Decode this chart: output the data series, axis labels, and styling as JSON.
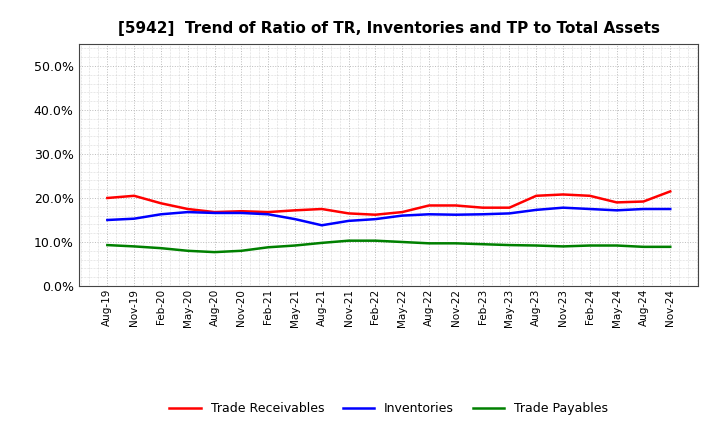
{
  "title": "[5942]  Trend of Ratio of TR, Inventories and TP to Total Assets",
  "x_labels": [
    "Aug-19",
    "Nov-19",
    "Feb-20",
    "May-20",
    "Aug-20",
    "Nov-20",
    "Feb-21",
    "May-21",
    "Aug-21",
    "Nov-21",
    "Feb-22",
    "May-22",
    "Aug-22",
    "Nov-22",
    "Feb-23",
    "May-23",
    "Aug-23",
    "Nov-23",
    "Feb-24",
    "May-24",
    "Aug-24",
    "Nov-24"
  ],
  "trade_receivables": [
    0.2,
    0.205,
    0.188,
    0.175,
    0.168,
    0.17,
    0.168,
    0.172,
    0.175,
    0.165,
    0.162,
    0.168,
    0.183,
    0.183,
    0.178,
    0.178,
    0.205,
    0.208,
    0.205,
    0.19,
    0.192,
    0.215
  ],
  "inventories": [
    0.15,
    0.153,
    0.163,
    0.168,
    0.166,
    0.166,
    0.163,
    0.152,
    0.138,
    0.148,
    0.152,
    0.16,
    0.163,
    0.162,
    0.163,
    0.165,
    0.173,
    0.178,
    0.175,
    0.172,
    0.175,
    0.175
  ],
  "trade_payables": [
    0.093,
    0.09,
    0.086,
    0.08,
    0.077,
    0.08,
    0.088,
    0.092,
    0.098,
    0.103,
    0.103,
    0.1,
    0.097,
    0.097,
    0.095,
    0.093,
    0.092,
    0.09,
    0.092,
    0.092,
    0.089,
    0.089
  ],
  "tr_color": "#ff0000",
  "inv_color": "#0000ff",
  "tp_color": "#008000",
  "ylim": [
    0.0,
    0.55
  ],
  "yticks": [
    0.0,
    0.1,
    0.2,
    0.3,
    0.4,
    0.5
  ],
  "background_color": "#ffffff",
  "plot_bg_color": "#f5f5f5",
  "grid_color": "#bbbbbb",
  "legend_labels": [
    "Trade Receivables",
    "Inventories",
    "Trade Payables"
  ]
}
